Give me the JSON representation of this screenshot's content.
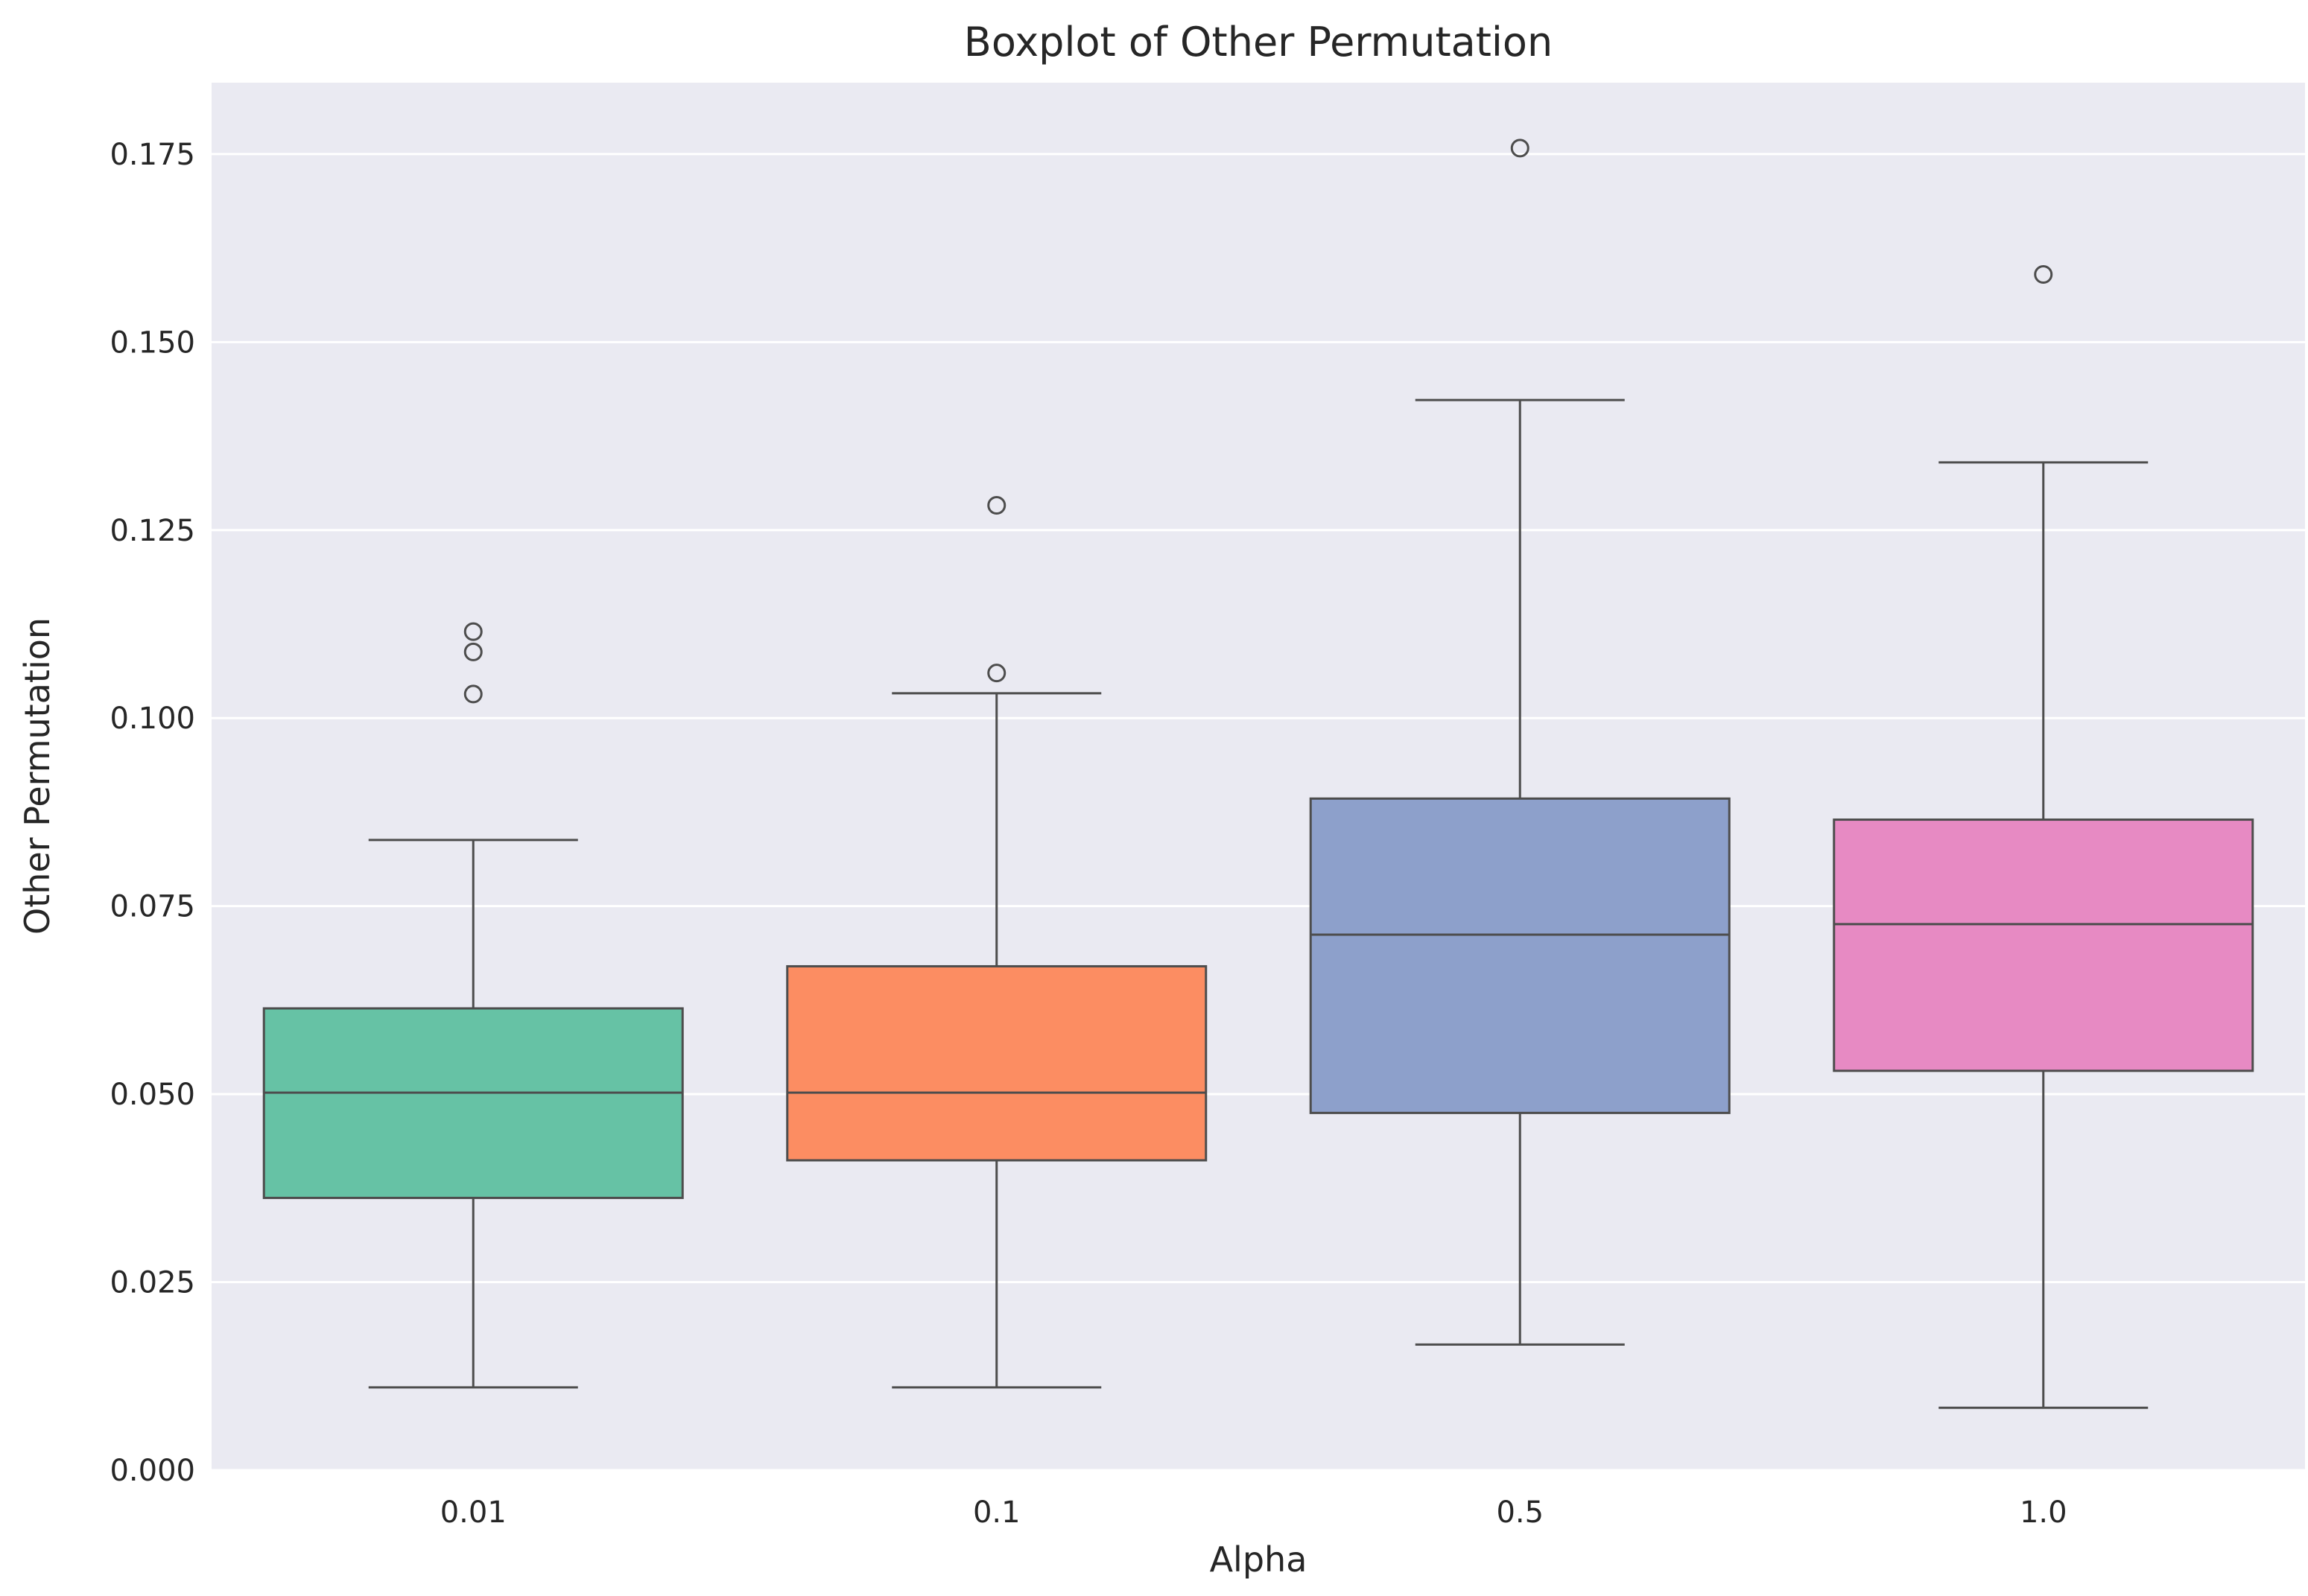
{
  "chart_data": {
    "type": "box",
    "title": "Boxplot of Other Permutation",
    "xlabel": "Alpha",
    "ylabel": "Other Permutation",
    "categories": [
      "0.01",
      "0.1",
      "0.5",
      "1.0"
    ],
    "ylim": [
      0,
      0.1845
    ],
    "yticks": [
      0.0,
      0.025,
      0.05,
      0.075,
      0.1,
      0.125,
      0.15,
      0.175
    ],
    "ytick_labels": [
      "0.000",
      "0.025",
      "0.050",
      "0.075",
      "0.100",
      "0.125",
      "0.150",
      "0.175"
    ],
    "grid": true,
    "boxes": [
      {
        "category": "0.01",
        "whislo": 0.011,
        "q1": 0.0362,
        "median": 0.0502,
        "q3": 0.0614,
        "whishi": 0.0838,
        "fliers": [
          0.1032,
          0.1088,
          0.1115
        ],
        "color": "#66c2a5"
      },
      {
        "category": "0.1",
        "whislo": 0.011,
        "q1": 0.0412,
        "median": 0.0502,
        "q3": 0.067,
        "whishi": 0.1033,
        "fliers": [
          0.106,
          0.1283
        ],
        "color": "#fc8d62"
      },
      {
        "category": "0.5",
        "whislo": 0.0167,
        "q1": 0.0475,
        "median": 0.0712,
        "q3": 0.0893,
        "whishi": 0.1423,
        "fliers": [
          0.1758
        ],
        "color": "#8da0cb"
      },
      {
        "category": "1.0",
        "whislo": 0.0083,
        "q1": 0.0531,
        "median": 0.0726,
        "q3": 0.0865,
        "whishi": 0.134,
        "fliers": [
          0.159
        ],
        "color": "#e78ac3"
      }
    ]
  }
}
